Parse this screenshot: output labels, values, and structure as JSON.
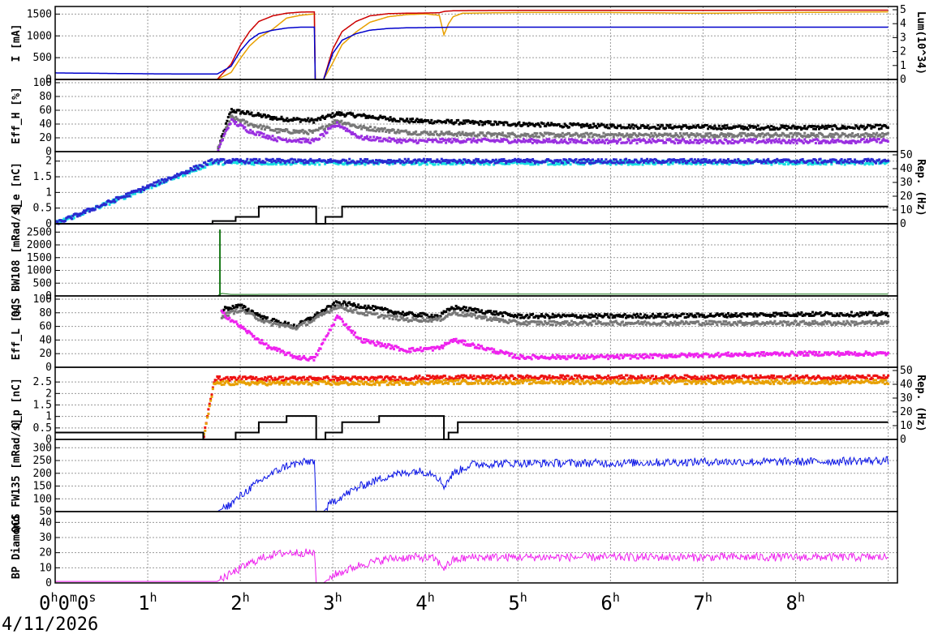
{
  "date_label": "4/11/2026",
  "x_ticks": [
    {
      "main": "0",
      "parts": [
        [
          "h",
          "0"
        ],
        [
          "m",
          "0"
        ],
        [
          "s",
          ""
        ]
      ]
    },
    {
      "main": "1",
      "parts": [
        [
          "h",
          ""
        ]
      ]
    },
    {
      "main": "2",
      "parts": [
        [
          "h",
          ""
        ]
      ]
    },
    {
      "main": "3",
      "parts": [
        [
          "h",
          ""
        ]
      ]
    },
    {
      "main": "4",
      "parts": [
        [
          "h",
          ""
        ]
      ]
    },
    {
      "main": "5",
      "parts": [
        [
          "h",
          ""
        ]
      ]
    },
    {
      "main": "6",
      "parts": [
        [
          "h",
          ""
        ]
      ]
    },
    {
      "main": "7",
      "parts": [
        [
          "h",
          ""
        ]
      ]
    },
    {
      "main": "8",
      "parts": [
        [
          "h",
          ""
        ]
      ]
    }
  ],
  "x_tick_strings": [
    "0h0m0s",
    "1h",
    "2h",
    "3h",
    "4h",
    "5h",
    "6h",
    "7h",
    "8h"
  ],
  "chart_data": [
    {
      "type": "line",
      "panel": "current",
      "ylabel": "I [mA]",
      "y2label": "Lum(10^34)",
      "ylim": [
        0,
        1600
      ],
      "y2lim": [
        0,
        5
      ],
      "yticks": [
        "0",
        "500",
        "1000",
        "1500"
      ],
      "y2ticks": [
        "0",
        "1",
        "2",
        "3",
        "4",
        "5"
      ],
      "x_hours": [
        0,
        0.5,
        1,
        1.5,
        1.75,
        1.9,
        2.0,
        2.1,
        2.2,
        2.35,
        2.5,
        2.65,
        2.8,
        2.81,
        2.82,
        2.9,
        3.0,
        3.1,
        3.25,
        3.4,
        3.6,
        3.8,
        4.0,
        4.15,
        4.2,
        4.25,
        4.3,
        4.4,
        5.0,
        6.0,
        7.0,
        8.0,
        9.0
      ],
      "series": [
        {
          "color": "#e8a000",
          "axis": "y2",
          "values": [
            0,
            0,
            0,
            0,
            0,
            0.5,
            1.5,
            2.4,
            3.0,
            3.6,
            4.4,
            4.6,
            4.7,
            0,
            0,
            0,
            1.2,
            2.5,
            3.4,
            4.1,
            4.5,
            4.65,
            4.7,
            4.6,
            3.2,
            4.0,
            4.5,
            4.75,
            4.8,
            4.8,
            4.75,
            4.8,
            4.85
          ]
        },
        {
          "color": "#cc0000",
          "axis": "y1",
          "values": [
            0,
            0,
            0,
            0,
            0,
            350,
            780,
            1100,
            1330,
            1460,
            1520,
            1545,
            1550,
            0,
            0,
            0,
            700,
            1100,
            1330,
            1460,
            1510,
            1520,
            1525,
            1530,
            1560,
            1570,
            1575,
            1580,
            1585,
            1585,
            1585,
            1590,
            1590
          ]
        },
        {
          "color": "#0000cc",
          "axis": "y1",
          "values": [
            150,
            140,
            130,
            125,
            125,
            300,
            650,
            900,
            1050,
            1130,
            1180,
            1200,
            1200,
            0,
            0,
            0,
            600,
            900,
            1050,
            1130,
            1170,
            1185,
            1190,
            1195,
            1195,
            1200,
            1200,
            1200,
            1200,
            1200,
            1200,
            1200,
            1200
          ]
        }
      ]
    },
    {
      "type": "scatter",
      "panel": "effH",
      "ylabel": "Eff_H [%]",
      "ylim": [
        0,
        100
      ],
      "yticks": [
        "0",
        "20",
        "40",
        "60",
        "80",
        "100"
      ],
      "x_hours": [
        1.75,
        1.9,
        2.1,
        2.4,
        2.8,
        3.05,
        3.3,
        3.8,
        4.5,
        5.5,
        6.5,
        7.5,
        8.5,
        9.0
      ],
      "series": [
        {
          "color": "#000000",
          "values": [
            0,
            60,
            55,
            48,
            45,
            55,
            52,
            45,
            42,
            38,
            36,
            35,
            35,
            36
          ]
        },
        {
          "color": "#777777",
          "values": [
            0,
            50,
            40,
            30,
            28,
            45,
            35,
            28,
            25,
            24,
            24,
            24,
            24,
            24
          ]
        },
        {
          "color": "#9a2fe0",
          "values": [
            0,
            45,
            30,
            18,
            15,
            40,
            20,
            15,
            16,
            15,
            15,
            15,
            15,
            16
          ]
        }
      ]
    },
    {
      "type": "scatter",
      "panel": "qe",
      "ylabel": "Q_e [nC]",
      "y2label": "Rep. (Hz)",
      "ylim": [
        0,
        2.2
      ],
      "y2lim": [
        0,
        50
      ],
      "yticks": [
        "0",
        "0.5",
        "1",
        "1.5",
        "2"
      ],
      "y2ticks": [
        "0",
        "10",
        "20",
        "30",
        "40",
        "50"
      ],
      "x_hours": [
        0,
        1.7,
        1.95,
        2.2,
        2.82,
        2.92,
        3.1,
        9.0
      ],
      "series": [
        {
          "color": "#19e0e0",
          "values": [
            0,
            1.95,
            1.95,
            1.95,
            1.95,
            1.95,
            1.95,
            1.95
          ]
        },
        {
          "color": "#2a2ad0",
          "values": [
            0,
            2.0,
            2.0,
            2.0,
            2.0,
            2.0,
            2.0,
            2.0
          ]
        },
        {
          "color": "#000000",
          "axis": "y2",
          "step": true,
          "values": [
            0,
            2,
            5,
            12.5,
            0,
            5,
            12.5,
            12.5
          ]
        }
      ]
    },
    {
      "type": "line",
      "panel": "qcs_bw108",
      "ylabel": "QCS BW108 [mRad/s]",
      "ylim": [
        0,
        2700
      ],
      "yticks": [
        "0",
        "500",
        "1000",
        "1500",
        "2000",
        "2500"
      ],
      "spike": {
        "x_hour": 1.78,
        "value": 2600
      },
      "x_hours": [
        0,
        1.75,
        1.8,
        1.9,
        2.0,
        3.0,
        4.0,
        5.0,
        6.0,
        7.0,
        8.0,
        9.0
      ],
      "series": [
        {
          "color": "#1a7a1a",
          "values": [
            0,
            0,
            100,
            60,
            60,
            70,
            70,
            70,
            70,
            70,
            70,
            70
          ]
        }
      ]
    },
    {
      "type": "scatter",
      "panel": "effL",
      "ylabel": "Eff_L [%]",
      "ylim": [
        0,
        100
      ],
      "yticks": [
        "0",
        "20",
        "40",
        "60",
        "80",
        "100"
      ],
      "x_hours": [
        1.8,
        2.0,
        2.3,
        2.6,
        2.8,
        3.05,
        3.3,
        3.8,
        4.15,
        4.3,
        5.0,
        6.0,
        7.0,
        8.0,
        9.0
      ],
      "series": [
        {
          "color": "#000000",
          "values": [
            85,
            90,
            70,
            60,
            75,
            95,
            90,
            78,
            75,
            88,
            75,
            75,
            76,
            78,
            78
          ]
        },
        {
          "color": "#777777",
          "values": [
            75,
            85,
            65,
            58,
            70,
            90,
            80,
            70,
            70,
            80,
            65,
            65,
            65,
            65,
            65
          ]
        },
        {
          "color": "#ee22ee",
          "values": [
            80,
            60,
            30,
            15,
            12,
            75,
            40,
            25,
            28,
            40,
            15,
            15,
            18,
            20,
            20
          ]
        }
      ]
    },
    {
      "type": "scatter",
      "panel": "qp",
      "ylabel": "Q_p [nC]",
      "y2label": "Rep. (Hz)",
      "ylim": [
        0,
        3.0
      ],
      "y2lim": [
        0,
        50
      ],
      "yticks": [
        "0",
        "0.5",
        "1",
        "1.5",
        "2",
        "2.5"
      ],
      "y2ticks": [
        "0",
        "10",
        "20",
        "30",
        "40",
        "50"
      ],
      "x_hours": [
        0,
        1.6,
        1.72,
        1.95,
        2.2,
        2.5,
        2.82,
        2.92,
        3.1,
        3.5,
        4.2,
        4.25,
        4.35,
        9.0
      ],
      "series": [
        {
          "color": "#ee1111",
          "values": [
            0,
            0,
            2.65,
            2.65,
            2.65,
            2.65,
            2.65,
            2.65,
            2.65,
            2.65,
            2.7,
            2.7,
            2.7,
            2.7
          ]
        },
        {
          "color": "#e8a000",
          "values": [
            0,
            0,
            2.45,
            2.45,
            2.45,
            2.45,
            2.45,
            2.45,
            2.45,
            2.45,
            2.5,
            2.5,
            2.5,
            2.5
          ]
        },
        {
          "color": "#000000",
          "axis": "y2",
          "step": true,
          "values": [
            5,
            0,
            0,
            5,
            12.5,
            17,
            0,
            5,
            12.5,
            17,
            0,
            5,
            12.5,
            12.5
          ]
        }
      ]
    },
    {
      "type": "line",
      "panel": "qcs_fw135",
      "ylabel": "QCS FW135 [mRad/s]",
      "ylim": [
        50,
        320
      ],
      "yticks": [
        "50",
        "100",
        "150",
        "200",
        "250",
        "300"
      ],
      "x_hours": [
        0,
        1.75,
        1.9,
        2.1,
        2.3,
        2.5,
        2.8,
        2.82,
        2.9,
        3.0,
        3.3,
        3.6,
        3.9,
        4.1,
        4.2,
        4.3,
        4.5,
        5.0,
        6.0,
        7.0,
        8.0,
        9.0
      ],
      "series": [
        {
          "color": "#0a14e6",
          "values": [
            50,
            50,
            80,
            140,
            190,
            230,
            250,
            50,
            50,
            90,
            150,
            190,
            210,
            200,
            150,
            200,
            235,
            240,
            240,
            245,
            245,
            250
          ]
        }
      ]
    },
    {
      "type": "line",
      "panel": "bp_diamond",
      "ylabel": "BP Diamond",
      "ylim": [
        0,
        45
      ],
      "yticks": [
        "0",
        "10",
        "20",
        "30",
        "40"
      ],
      "x_hours": [
        0,
        1.75,
        1.9,
        2.1,
        2.3,
        2.5,
        2.8,
        2.82,
        2.9,
        3.0,
        3.3,
        3.6,
        3.9,
        4.1,
        4.2,
        4.3,
        4.5,
        5.0,
        6.0,
        7.0,
        8.0,
        9.0
      ],
      "series": [
        {
          "color": "#ee22ee",
          "values": [
            1,
            1,
            6,
            13,
            18,
            20,
            20,
            0,
            0,
            5,
            12,
            16,
            17,
            16,
            10,
            15,
            17,
            17,
            17,
            17,
            17,
            17
          ]
        }
      ]
    }
  ]
}
